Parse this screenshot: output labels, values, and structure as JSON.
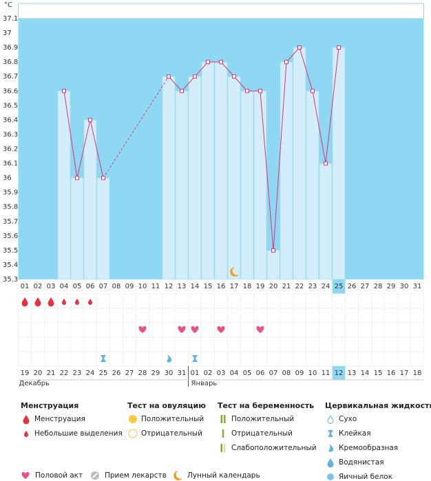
{
  "chart_data": {
    "type": "line",
    "y_unit": "°C",
    "categories": [
      "01",
      "02",
      "03",
      "04",
      "05",
      "06",
      "07",
      "08",
      "09",
      "10",
      "11",
      "12",
      "13",
      "14",
      "15",
      "16",
      "17",
      "18",
      "19",
      "20",
      "21",
      "22",
      "23",
      "24",
      "25",
      "26",
      "27",
      "28",
      "29",
      "30",
      "31"
    ],
    "values": [
      null,
      null,
      null,
      36.6,
      36.0,
      36.4,
      36.0,
      null,
      null,
      null,
      null,
      36.7,
      36.6,
      36.7,
      36.8,
      36.8,
      36.7,
      36.6,
      36.6,
      35.5,
      36.8,
      36.9,
      36.6,
      36.1,
      36.9,
      null,
      null,
      null,
      null,
      null,
      null
    ],
    "ylim": [
      35.3,
      37.1
    ],
    "yticks": [
      35.3,
      35.4,
      35.5,
      35.6,
      35.7,
      35.8,
      35.9,
      36,
      36.1,
      36.2,
      36.3,
      36.4,
      36.5,
      36.6,
      36.7,
      36.8,
      36.9,
      37,
      37.1
    ],
    "highlight": 24,
    "color": "#e0306a",
    "bar_color": "#d3eefa",
    "background": "#8fd8f3",
    "grid": false
  },
  "symbols": {
    "bleeding": [
      0,
      0,
      0,
      1,
      1,
      1,
      null,
      null,
      null,
      null,
      null,
      null,
      null,
      null,
      null,
      null,
      null,
      null,
      null,
      null,
      null,
      null,
      null,
      null,
      null,
      null,
      null,
      null,
      null,
      null,
      null
    ],
    "intercourse_days": [
      9,
      12,
      13,
      15,
      18
    ],
    "cervical": [
      null,
      null,
      null,
      null,
      null,
      null,
      1,
      null,
      null,
      null,
      null,
      2,
      null,
      1,
      null,
      null,
      null,
      null,
      null,
      null,
      null,
      null,
      null,
      null,
      null,
      null,
      null,
      null,
      null,
      null,
      null
    ],
    "moon_day": 16
  },
  "cycle_dates": [
    "19",
    "20",
    "21",
    "22",
    "23",
    "24",
    "25",
    "26",
    "27",
    "28",
    "29",
    "30",
    "31",
    "01",
    "02",
    "03",
    "04",
    "05",
    "06",
    "07",
    "08",
    "09",
    "10",
    "11",
    "12",
    "13",
    "14",
    "15",
    "16",
    "17",
    "18"
  ],
  "holidays": [
    5,
    6,
    12,
    13,
    19,
    20,
    27
  ],
  "months": [
    "Декабрь",
    "Январь"
  ],
  "month_start": 13,
  "legend": {
    "groups": [
      {
        "title": "Менструация",
        "items": [
          "Менструация",
          "Небольшие выделения"
        ]
      },
      {
        "title": "Тест на овуляцию",
        "items": [
          "Положительный",
          "Отрицательный"
        ]
      },
      {
        "title": "Тест на беременность",
        "items": [
          "Положительный",
          "Отрицательный",
          "Слабоположительный"
        ]
      },
      {
        "title": "Цервикальная жидкость",
        "items": [
          "Сухо",
          "Клейкая",
          "Кремообразная",
          "Водянистая",
          "Яичный белок"
        ]
      }
    ],
    "extras": [
      "Половой акт",
      "Прием лекарств",
      "Лунный календарь"
    ]
  }
}
